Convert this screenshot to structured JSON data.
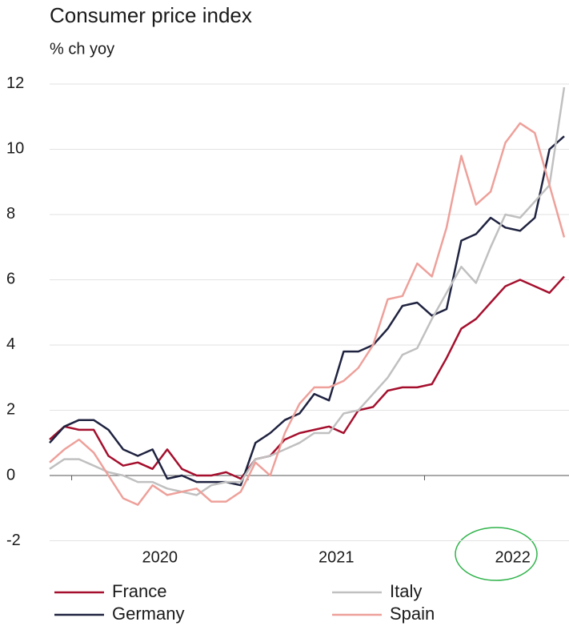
{
  "chart_data": {
    "type": "line",
    "title": "Consumer price index",
    "subtitle": "% ch yoy",
    "categories": [
      null,
      null,
      null,
      null,
      null,
      null,
      null,
      null,
      "2020",
      null,
      null,
      null,
      null,
      null,
      null,
      null,
      null,
      null,
      null,
      null,
      "2021",
      null,
      null,
      null,
      null,
      null,
      null,
      null,
      null,
      null,
      null,
      null,
      "2022",
      null,
      null,
      null
    ],
    "series": [
      {
        "name": "France",
        "color": "#a50f2d",
        "values": [
          1.1,
          1.5,
          1.4,
          1.4,
          0.6,
          0.3,
          0.4,
          0.2,
          0.8,
          0.2,
          0.0,
          0.0,
          0.1,
          -0.1,
          0.5,
          0.6,
          1.1,
          1.3,
          1.4,
          1.5,
          1.3,
          2.0,
          2.1,
          2.6,
          2.7,
          2.7,
          2.8,
          3.6,
          4.5,
          4.8,
          5.3,
          5.8,
          6.0,
          5.8,
          5.6,
          6.1
        ]
      },
      {
        "name": "Germany",
        "color": "#1f2340",
        "values": [
          1.0,
          1.5,
          1.7,
          1.7,
          1.4,
          0.8,
          0.6,
          0.8,
          -0.1,
          0.0,
          -0.2,
          -0.2,
          -0.2,
          -0.3,
          1.0,
          1.3,
          1.7,
          1.9,
          2.5,
          2.3,
          3.8,
          3.8,
          4.0,
          4.5,
          5.2,
          5.3,
          4.9,
          5.1,
          7.2,
          7.4,
          7.9,
          7.6,
          7.5,
          7.9,
          10.0,
          10.4
        ]
      },
      {
        "name": "Italy",
        "color": "#c0c0c0",
        "values": [
          0.2,
          0.5,
          0.5,
          0.3,
          0.1,
          0.0,
          -0.2,
          -0.2,
          -0.4,
          -0.5,
          -0.6,
          -0.3,
          -0.2,
          -0.2,
          0.5,
          0.6,
          0.8,
          1.0,
          1.3,
          1.3,
          1.9,
          2.0,
          2.5,
          3.0,
          3.7,
          3.9,
          4.8,
          5.6,
          6.4,
          5.9,
          7.0,
          8.0,
          7.9,
          8.4,
          8.9,
          11.9
        ]
      },
      {
        "name": "Spain",
        "color": "#eea09a",
        "values": [
          0.4,
          0.8,
          1.1,
          0.7,
          0.0,
          -0.7,
          -0.9,
          -0.3,
          -0.6,
          -0.5,
          -0.4,
          -0.8,
          -0.8,
          -0.5,
          0.4,
          0.0,
          1.3,
          2.2,
          2.7,
          2.7,
          2.9,
          3.3,
          4.0,
          5.4,
          5.5,
          6.5,
          6.1,
          7.6,
          9.8,
          8.3,
          8.7,
          10.2,
          10.8,
          10.5,
          8.9,
          7.3
        ]
      }
    ],
    "ylim": [
      -2.7,
      12.2
    ],
    "yticks": [
      -2,
      0,
      2,
      4,
      6,
      8,
      10,
      12
    ],
    "grid": true
  }
}
